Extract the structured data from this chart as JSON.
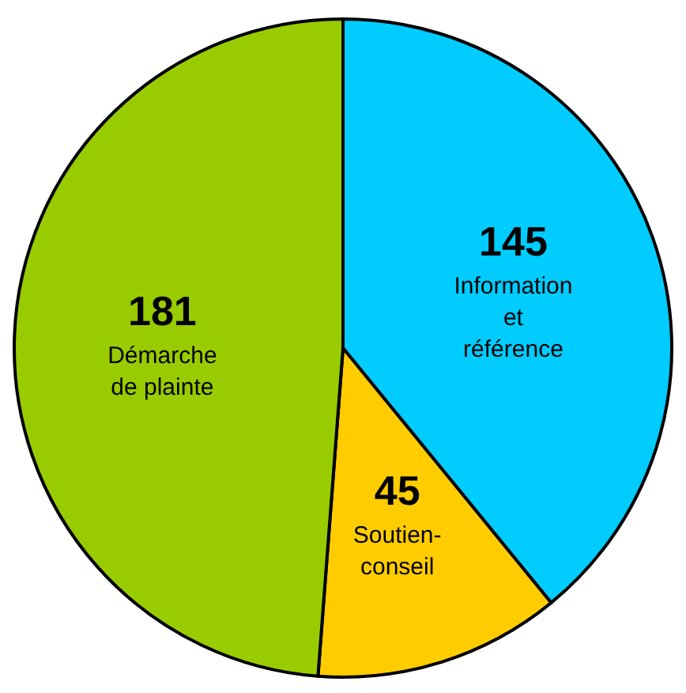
{
  "chart_data": {
    "type": "pie",
    "categories": [
      "Information\net\nréférence",
      "Soutien-\nconseil",
      "Démarche\nde plainte"
    ],
    "values": [
      145,
      45,
      181
    ],
    "colors": [
      "#00ccff",
      "#ffcc00",
      "#99cc00"
    ],
    "data_labels": true
  }
}
